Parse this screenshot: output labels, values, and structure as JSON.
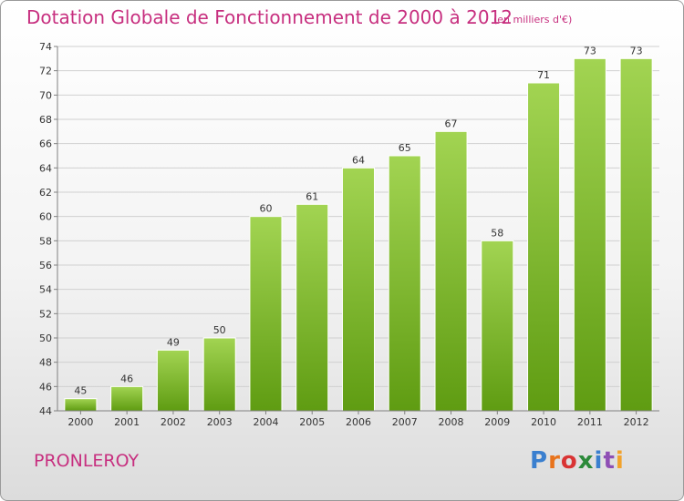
{
  "title": "Dotation Globale de Fonctionnement de 2000 à 2012",
  "subtitle": "(en milliers d'€)",
  "commune": "PRONLEROY",
  "logo": {
    "text": "Proxiti",
    "colors": [
      "#3a7fcf",
      "#e8731c",
      "#d93434",
      "#2c8a3a",
      "#3a7fcf",
      "#8e4fb5",
      "#f2a22b"
    ]
  },
  "colors": {
    "title": "#c72f7f",
    "bar_top": "#a2d452",
    "bar_bottom": "#5f9c12",
    "axis": "#808080",
    "grid": "#d0d0d0"
  },
  "chart_data": {
    "type": "bar",
    "title": "Dotation Globale de Fonctionnement de 2000 à 2012",
    "subtitle": "(en milliers d'€)",
    "xlabel": "",
    "ylabel": "",
    "categories": [
      "2000",
      "2001",
      "2002",
      "2003",
      "2004",
      "2005",
      "2006",
      "2007",
      "2008",
      "2009",
      "2010",
      "2011",
      "2012"
    ],
    "values": [
      45,
      46,
      49,
      50,
      60,
      61,
      64,
      65,
      67,
      58,
      71,
      73,
      73
    ],
    "ylim": [
      44,
      74
    ],
    "yticks": [
      44,
      46,
      48,
      50,
      52,
      54,
      56,
      58,
      60,
      62,
      64,
      66,
      68,
      70,
      72,
      74
    ],
    "grid": true,
    "data_labels": true
  }
}
